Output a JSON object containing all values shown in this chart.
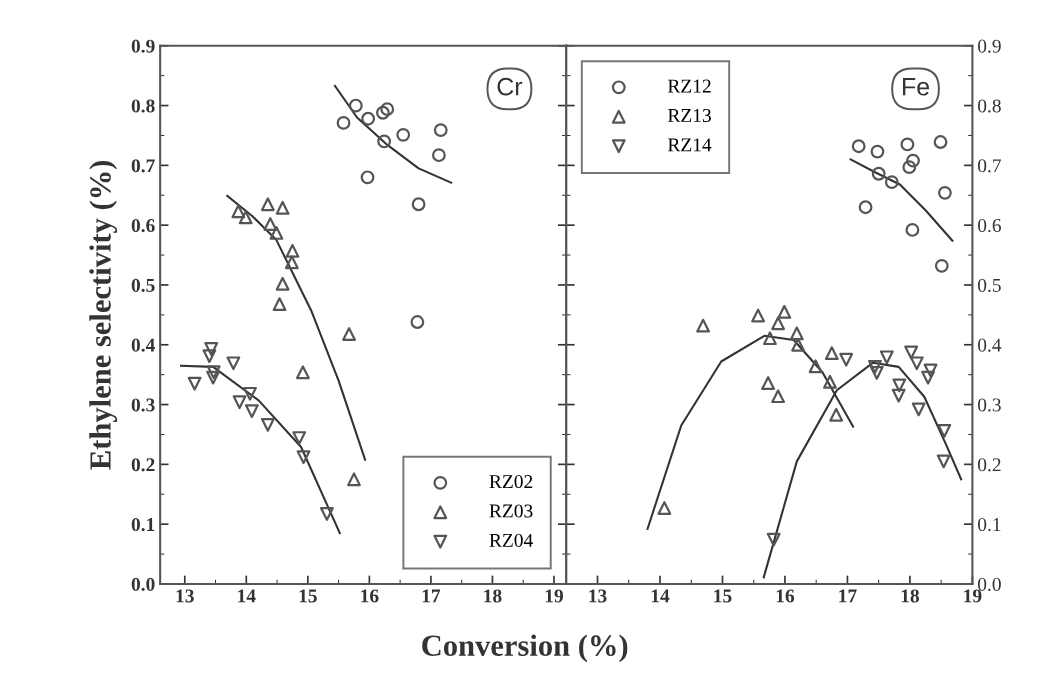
{
  "chart_data": [
    {
      "type": "scatter",
      "ylabel": "Ethylene selectivity (%)",
      "xlabel": "Conversion (%)",
      "annotations": [
        "Cr"
      ],
      "xlim": [
        12.6,
        19.2
      ],
      "xticks": [
        13,
        14,
        15,
        16,
        17,
        18,
        19
      ],
      "ylim": [
        0,
        0.9
      ],
      "yticks": [
        {
          "value": 0,
          "label": "0.0"
        },
        0.1,
        0.2,
        0.3,
        0.4,
        0.5,
        0.6,
        0.7,
        0.8,
        0.9
      ],
      "grid": false,
      "legend": "bottom right",
      "series": [
        {
          "name": "RZ02",
          "color": "#555555",
          "marker": "circle",
          "x": [
            15.58,
            15.78,
            15.98,
            16.22,
            16.29,
            16.24,
            16.55,
            17.16,
            17.13,
            15.97,
            16.8,
            16.78
          ],
          "values": [
            0.771,
            0.8,
            0.778,
            0.788,
            0.794,
            0.74,
            0.751,
            0.759,
            0.717,
            0.68,
            0.635,
            0.438
          ]
        },
        {
          "name": "RZ03",
          "color": "#555555",
          "marker": "triangle",
          "x": [
            14.35,
            14.59,
            13.87,
            13.99,
            14.39,
            14.49,
            14.75,
            14.74,
            14.59,
            14.54,
            15.67,
            14.92,
            15.75
          ],
          "values": [
            0.635,
            0.629,
            0.623,
            0.613,
            0.602,
            0.587,
            0.557,
            0.538,
            0.502,
            0.468,
            0.418,
            0.354,
            0.175
          ]
        },
        {
          "name": "RZ04",
          "color": "#555555",
          "marker": "triangle_down",
          "x": [
            13.16,
            13.43,
            13.4,
            13.47,
            13.46,
            13.79,
            13.89,
            14.06,
            14.09,
            14.35,
            14.86,
            14.93,
            15.31
          ],
          "values": [
            0.335,
            0.393,
            0.381,
            0.354,
            0.345,
            0.369,
            0.304,
            0.318,
            0.289,
            0.266,
            0.244,
            0.212,
            0.117
          ]
        },
        {
          "type": "line",
          "color": "#333333",
          "x": [
            15.44,
            15.8,
            16.27,
            16.8,
            17.33
          ],
          "values": [
            0.833,
            0.78,
            0.736,
            0.695,
            0.671
          ]
        },
        {
          "type": "line",
          "color": "#333333",
          "x": [
            13.69,
            14.1,
            14.49,
            15.06,
            15.5,
            15.93
          ],
          "values": [
            0.649,
            0.615,
            0.575,
            0.456,
            0.34,
            0.208
          ]
        },
        {
          "type": "line",
          "color": "#333333",
          "x": [
            12.94,
            13.46,
            14.2,
            14.89,
            15.52
          ],
          "values": [
            0.365,
            0.363,
            0.307,
            0.229,
            0.085
          ]
        }
      ]
    },
    {
      "type": "scatter",
      "annotations": [
        "Fe"
      ],
      "xlim": [
        12.5,
        19.0
      ],
      "xticks": [
        13,
        14,
        15,
        16,
        17,
        18,
        19
      ],
      "ylim": [
        0,
        0.9
      ],
      "yticks": [
        {
          "value": 0,
          "label": "0.0"
        },
        0.1,
        0.2,
        0.3,
        0.4,
        0.5,
        0.6,
        0.7,
        0.8,
        0.9
      ],
      "grid": false,
      "legend": "top left",
      "series": [
        {
          "name": "RZ12",
          "color": "#555555",
          "marker": "circle",
          "x": [
            17.18,
            17.48,
            17.96,
            18.49,
            18.05,
            17.99,
            17.5,
            17.71,
            17.29,
            18.56,
            18.04,
            18.51
          ],
          "values": [
            0.732,
            0.723,
            0.735,
            0.739,
            0.708,
            0.697,
            0.686,
            0.672,
            0.63,
            0.654,
            0.592,
            0.532
          ]
        },
        {
          "name": "RZ13",
          "color": "#555555",
          "marker": "triangle",
          "x": [
            14.69,
            14.07,
            15.57,
            15.99,
            15.89,
            15.76,
            16.19,
            16.21,
            16.75,
            16.49,
            15.73,
            15.89,
            16.72,
            16.82
          ],
          "values": [
            0.432,
            0.127,
            0.449,
            0.455,
            0.436,
            0.411,
            0.419,
            0.4,
            0.386,
            0.364,
            0.336,
            0.314,
            0.338,
            0.283
          ]
        },
        {
          "name": "RZ14",
          "color": "#555555",
          "marker": "triangle_down",
          "x": [
            15.82,
            16.98,
            17.44,
            17.47,
            17.63,
            18.02,
            18.11,
            18.29,
            18.33,
            17.83,
            17.82,
            18.14,
            18.55,
            18.54
          ],
          "values": [
            0.074,
            0.375,
            0.363,
            0.353,
            0.379,
            0.387,
            0.369,
            0.345,
            0.357,
            0.332,
            0.315,
            0.292,
            0.256,
            0.205
          ]
        },
        {
          "type": "line",
          "color": "#333333",
          "x": [
            17.05,
            17.45,
            17.84,
            18.25,
            18.68
          ],
          "values": [
            0.71,
            0.688,
            0.668,
            0.625,
            0.574
          ]
        },
        {
          "type": "line",
          "color": "#333333",
          "x": [
            13.8,
            14.34,
            14.98,
            15.67,
            16.14,
            16.6,
            17.09
          ],
          "values": [
            0.092,
            0.265,
            0.372,
            0.415,
            0.408,
            0.354,
            0.263
          ]
        },
        {
          "type": "line",
          "color": "#333333",
          "x": [
            15.66,
            16.19,
            16.83,
            17.41,
            17.82,
            18.23,
            18.57,
            18.82
          ],
          "values": [
            0.011,
            0.205,
            0.324,
            0.37,
            0.363,
            0.313,
            0.235,
            0.175
          ]
        }
      ]
    }
  ]
}
